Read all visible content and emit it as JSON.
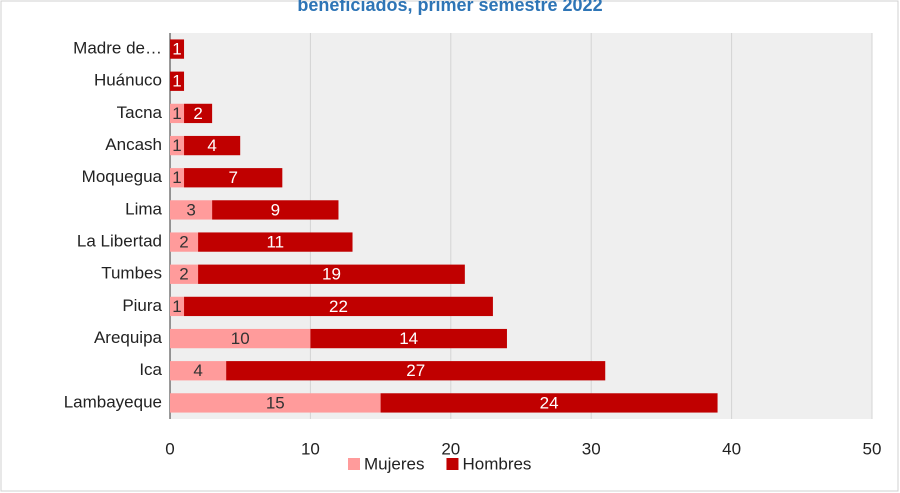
{
  "chart_data": {
    "type": "bar",
    "orientation": "horizontal",
    "stacked": true,
    "title": "beneficiados, primer semestre 2022",
    "categories": [
      "Madre de…",
      "Huánuco",
      "Tacna",
      "Ancash",
      "Moquegua",
      "Lima",
      "La Libertad",
      "Tumbes",
      "Piura",
      "Arequipa",
      "Ica",
      "Lambayeque"
    ],
    "series": [
      {
        "name": "Mujeres",
        "color": "#ff9b9b",
        "values": [
          null,
          null,
          1,
          1,
          1,
          3,
          2,
          2,
          1,
          10,
          4,
          15
        ]
      },
      {
        "name": "Hombres",
        "color": "#c00000",
        "values": [
          1,
          1,
          2,
          4,
          7,
          9,
          11,
          19,
          22,
          14,
          27,
          24
        ]
      }
    ],
    "xlim": [
      0,
      50
    ],
    "xticks": [
      0,
      10,
      20,
      30,
      40,
      50
    ],
    "grid": true,
    "legend": "bottom"
  }
}
